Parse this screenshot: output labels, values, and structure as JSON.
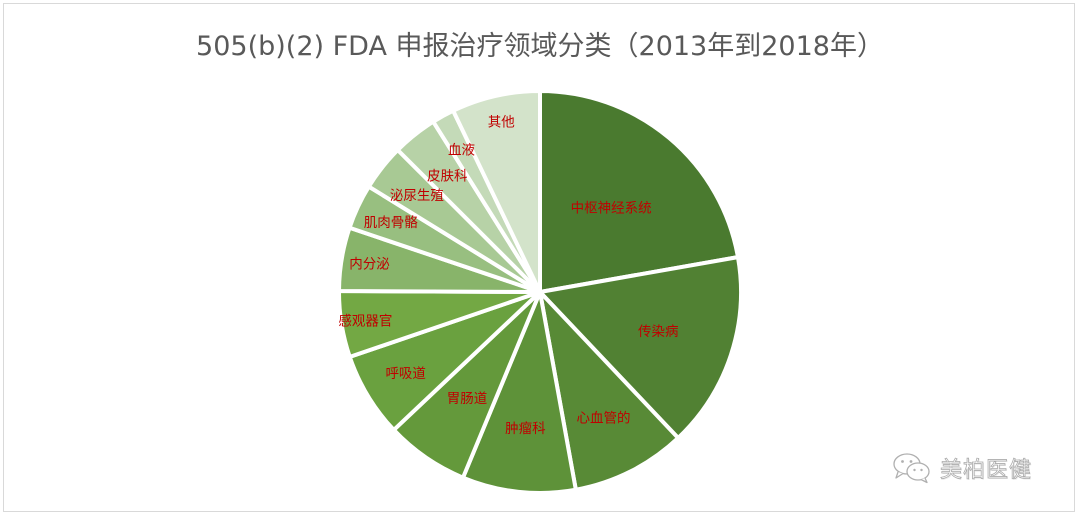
{
  "chart_data": {
    "type": "pie",
    "title": "505(b)(2) FDA 申报治疗领域分类（2013年到2018年）",
    "start_angle_deg": 0,
    "direction": "clockwise",
    "legend": "none",
    "labels_inside": true,
    "units": "percent (estimated from slice angles)",
    "slices": [
      {
        "label": "中枢神经系统",
        "value": 22.2,
        "color": "#4a7a2f"
      },
      {
        "label": "传染病",
        "value": 15.7,
        "color": "#518133"
      },
      {
        "label": "心血管的",
        "value": 9.2,
        "color": "#588a36"
      },
      {
        "label": "肿瘤科",
        "value": 9.1,
        "color": "#5e9239"
      },
      {
        "label": "胃肠道",
        "value": 6.7,
        "color": "#64993b"
      },
      {
        "label": "呼吸道",
        "value": 6.8,
        "color": "#6aa13f"
      },
      {
        "label": "感观器官",
        "value": 5.3,
        "color": "#73a844"
      },
      {
        "label": "内分泌",
        "value": 5.1,
        "color": "#88b46a"
      },
      {
        "label": "肌肉骨骼",
        "value": 3.6,
        "color": "#98bf80"
      },
      {
        "label": "泌尿生殖",
        "value": 3.7,
        "color": "#a8c994"
      },
      {
        "label": "皮肤科",
        "value": 3.6,
        "color": "#b7d2a7"
      },
      {
        "label": "血液",
        "value": 1.8,
        "color": "#c4dab8"
      },
      {
        "label": "其他",
        "value": 7.1,
        "color": "#d3e3ca"
      }
    ]
  },
  "header": {
    "title": "505(b)(2) FDA 申报治疗领域分类（2013年到2018年）"
  },
  "watermark": {
    "icon": "wechat-icon",
    "text": "美柏医健"
  },
  "colors": {
    "title": "#595959",
    "label": "#c00000",
    "separator": "#ffffff",
    "frame_border": "#d9d9d9"
  }
}
